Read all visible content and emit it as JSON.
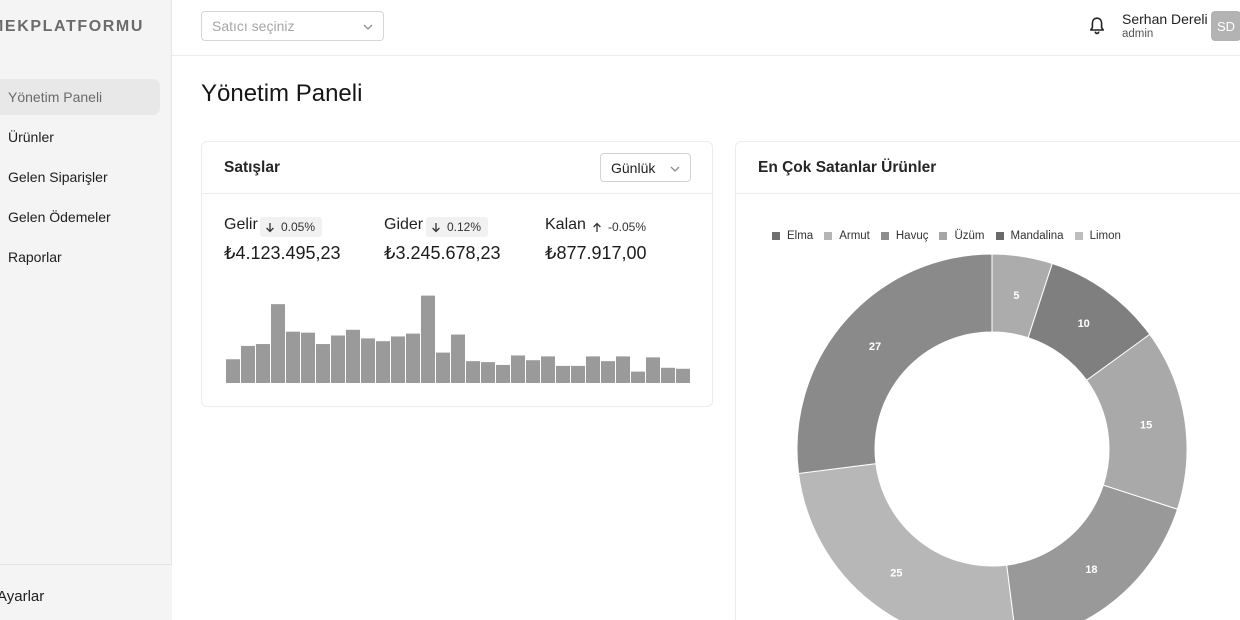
{
  "brand": {
    "logo_text": "MEKPLATFORMU"
  },
  "sidebar": {
    "items": [
      {
        "label": "Yönetim Paneli",
        "active": true
      },
      {
        "label": "Ürünler",
        "active": false
      },
      {
        "label": "Gelen Siparişler",
        "active": false
      },
      {
        "label": "Gelen Ödemeler",
        "active": false
      },
      {
        "label": "Raporlar",
        "active": false
      }
    ],
    "settings_label": "Ayarlar"
  },
  "header": {
    "seller_select": {
      "placeholder": "Satıcı seçiniz",
      "icon": "chevron-down-icon"
    },
    "notifications_icon": "bell-icon",
    "user": {
      "name": "Serhan Dereli",
      "role": "admin",
      "initials": "SD"
    }
  },
  "page": {
    "title": "Yönetim Paneli"
  },
  "sales": {
    "title": "Satışlar",
    "period": "Günlük",
    "stats": [
      {
        "label": "Gelir",
        "change": "0.05%",
        "direction": "down",
        "value": "₺4.123.495,23"
      },
      {
        "label": "Gider",
        "change": "0.12%",
        "direction": "down",
        "value": "₺3.245.678,23"
      },
      {
        "label": "Kalan",
        "change": "-0.05%",
        "direction": "up",
        "value": "₺877.917,00"
      }
    ],
    "chart_data": {
      "type": "bar",
      "values": [
        25,
        39,
        41,
        83,
        54,
        53,
        41,
        50,
        56,
        47,
        44,
        49,
        52,
        92,
        32,
        51,
        23,
        22,
        19,
        29,
        24,
        28,
        18,
        18,
        28,
        23,
        28,
        12,
        27,
        16,
        15
      ],
      "color": "#9a9a9a"
    }
  },
  "top_products": {
    "title": "En Çok Satanlar Ürünler",
    "chart_data": {
      "type": "pie",
      "categories": [
        "Elma",
        "Armut",
        "Havuç",
        "Üzüm",
        "Mandalina",
        "Limon"
      ],
      "values": [
        5,
        10,
        15,
        18,
        25,
        27
      ],
      "colors": [
        "#acacac",
        "#7f7f7f",
        "#a9a9a9",
        "#999999",
        "#b7b7b7",
        "#8a8a8a"
      ],
      "legend_colors": [
        "#6f6f6f",
        "#b5b5b5",
        "#8d8d8d",
        "#a6a6a6",
        "#6a6a6a",
        "#bdbdbd"
      ],
      "legend_position": "top",
      "donut": true
    }
  }
}
